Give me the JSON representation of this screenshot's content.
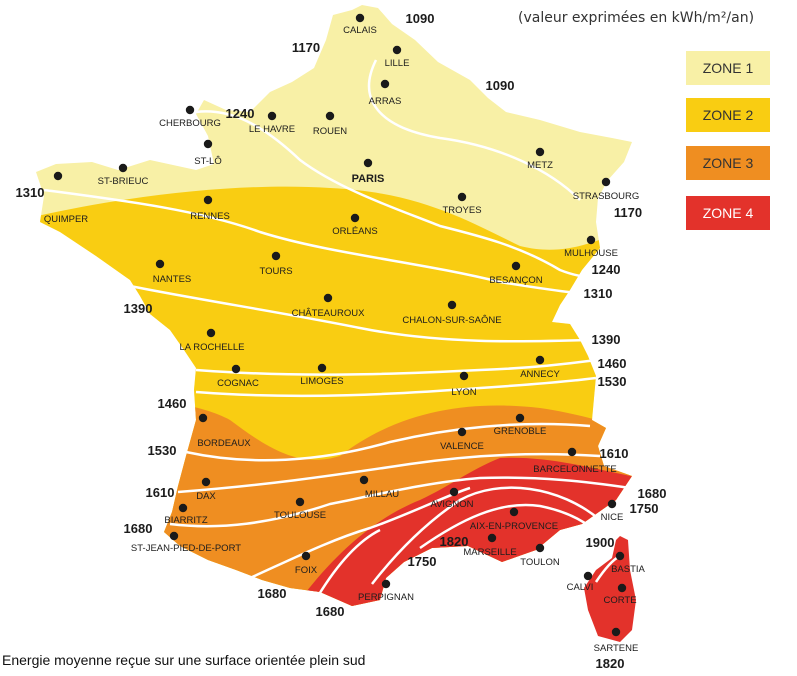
{
  "unit_note": "(valeur exprimées en kWh/m²/an)",
  "caption": "Energie moyenne reçue sur une surface orientée plein sud",
  "zones": [
    {
      "label": "ZONE 1",
      "color": "#f8f0a6"
    },
    {
      "label": "ZONE 2",
      "color": "#f9cd12"
    },
    {
      "label": "ZONE 3",
      "color": "#ef8e21"
    },
    {
      "label": "ZONE 4",
      "color": "#e3322b"
    }
  ],
  "cities": [
    {
      "name": "CALAIS"
    },
    {
      "name": "LILLE"
    },
    {
      "name": "ARRAS"
    },
    {
      "name": "CHERBOURG"
    },
    {
      "name": "LE HAVRE"
    },
    {
      "name": "ROUEN"
    },
    {
      "name": "ST-LÔ"
    },
    {
      "name": "PARIS"
    },
    {
      "name": "METZ"
    },
    {
      "name": "STRASBOURG"
    },
    {
      "name": "ST-BRIEUC"
    },
    {
      "name": "QUIMPER"
    },
    {
      "name": "RENNES"
    },
    {
      "name": "TROYES"
    },
    {
      "name": "ORLÉANS"
    },
    {
      "name": "MULHOUSE"
    },
    {
      "name": "NANTES"
    },
    {
      "name": "TOURS"
    },
    {
      "name": "BESANÇON"
    },
    {
      "name": "CHÂTEAUROUX"
    },
    {
      "name": "CHALON-SUR-SAÔNE"
    },
    {
      "name": "LA ROCHELLE"
    },
    {
      "name": "COGNAC"
    },
    {
      "name": "LIMOGES"
    },
    {
      "name": "LYON"
    },
    {
      "name": "ANNECY"
    },
    {
      "name": "BORDEAUX"
    },
    {
      "name": "VALENCE"
    },
    {
      "name": "GRENOBLE"
    },
    {
      "name": "BARCELONNETTE"
    },
    {
      "name": "DAX"
    },
    {
      "name": "TOULOUSE"
    },
    {
      "name": "MILLAU"
    },
    {
      "name": "AVIGNON"
    },
    {
      "name": "AIX-EN-PROVENCE"
    },
    {
      "name": "NICE"
    },
    {
      "name": "BIARRITZ"
    },
    {
      "name": "ST-JEAN-PIED-DE-PORT"
    },
    {
      "name": "MARSEILLE"
    },
    {
      "name": "TOULON"
    },
    {
      "name": "FOIX"
    },
    {
      "name": "PERPIGNAN"
    },
    {
      "name": "BASTIA"
    },
    {
      "name": "CALVI"
    },
    {
      "name": "CORTE"
    },
    {
      "name": "SARTENE"
    }
  ],
  "isolines": [
    {
      "value": "1090"
    },
    {
      "value": "1170"
    },
    {
      "value": "1090"
    },
    {
      "value": "1240"
    },
    {
      "value": "1310"
    },
    {
      "value": "1170"
    },
    {
      "value": "1240"
    },
    {
      "value": "1310"
    },
    {
      "value": "1390"
    },
    {
      "value": "1390"
    },
    {
      "value": "1460"
    },
    {
      "value": "1530"
    },
    {
      "value": "1460"
    },
    {
      "value": "1530"
    },
    {
      "value": "1610"
    },
    {
      "value": "1610"
    },
    {
      "value": "1680"
    },
    {
      "value": "1680"
    },
    {
      "value": "1750"
    },
    {
      "value": "1900"
    },
    {
      "value": "1820"
    },
    {
      "value": "1750"
    },
    {
      "value": "1680"
    },
    {
      "value": "1680"
    },
    {
      "value": "1820"
    }
  ]
}
